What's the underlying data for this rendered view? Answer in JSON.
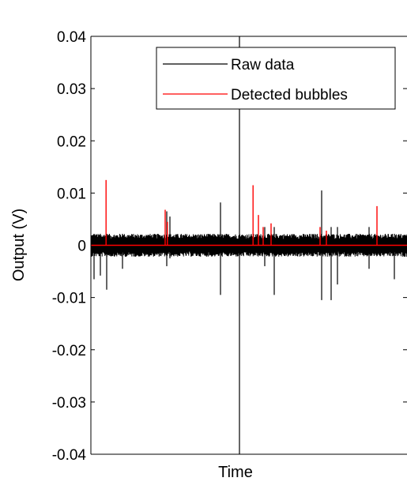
{
  "chart_data": {
    "type": "line",
    "xlabel": "Time",
    "ylabel": "Output (V)",
    "ylim": [
      -0.04,
      0.04
    ],
    "yticks": [
      "0.04",
      "0.03",
      "0.02",
      "0.01",
      "0",
      "-0.01",
      "-0.02",
      "-0.03",
      "-0.04"
    ],
    "ytick_values": [
      0.04,
      0.03,
      0.02,
      0.01,
      0,
      -0.01,
      -0.02,
      -0.03,
      -0.04
    ],
    "xticks": [],
    "grid": false,
    "legend_position": "top-right",
    "noise_band": [
      -0.0022,
      0.0022
    ],
    "series": [
      {
        "name": "Raw data",
        "color": "#000000",
        "spikes": [
          {
            "t": 0.01,
            "lo": -0.0065,
            "hi": 0.0022
          },
          {
            "t": 0.03,
            "lo": -0.0058,
            "hi": 0.0022
          },
          {
            "t": 0.05,
            "lo": -0.0085,
            "hi": 0.0022
          },
          {
            "t": 0.1,
            "lo": -0.0045,
            "hi": 0.0022
          },
          {
            "t": 0.24,
            "lo": -0.004,
            "hi": 0.0065
          },
          {
            "t": 0.25,
            "lo": -0.0025,
            "hi": 0.0055
          },
          {
            "t": 0.41,
            "lo": -0.0095,
            "hi": 0.0082
          },
          {
            "t": 0.47,
            "lo": -0.04,
            "hi": 0.04
          },
          {
            "t": 0.55,
            "lo": -0.004,
            "hi": 0.0035
          },
          {
            "t": 0.58,
            "lo": -0.0095,
            "hi": 0.0035
          },
          {
            "t": 0.73,
            "lo": -0.0105,
            "hi": 0.0105
          },
          {
            "t": 0.76,
            "lo": -0.0105,
            "hi": 0.0035
          },
          {
            "t": 0.78,
            "lo": -0.0075,
            "hi": 0.0035
          },
          {
            "t": 0.88,
            "lo": -0.0045,
            "hi": 0.0035
          },
          {
            "t": 0.96,
            "lo": -0.0065,
            "hi": 0.0022
          }
        ]
      },
      {
        "name": "Detected bubbles",
        "color": "#ff0000",
        "baseline": 0,
        "spikes": [
          {
            "t": 0.048,
            "v": 0.0125
          },
          {
            "t": 0.235,
            "v": 0.0068
          },
          {
            "t": 0.242,
            "v": 0.0045
          },
          {
            "t": 0.513,
            "v": 0.0115
          },
          {
            "t": 0.53,
            "v": 0.0058
          },
          {
            "t": 0.545,
            "v": 0.0035
          },
          {
            "t": 0.57,
            "v": 0.0042
          },
          {
            "t": 0.725,
            "v": 0.0035
          },
          {
            "t": 0.745,
            "v": 0.0028
          },
          {
            "t": 0.905,
            "v": 0.0075
          }
        ]
      }
    ]
  }
}
